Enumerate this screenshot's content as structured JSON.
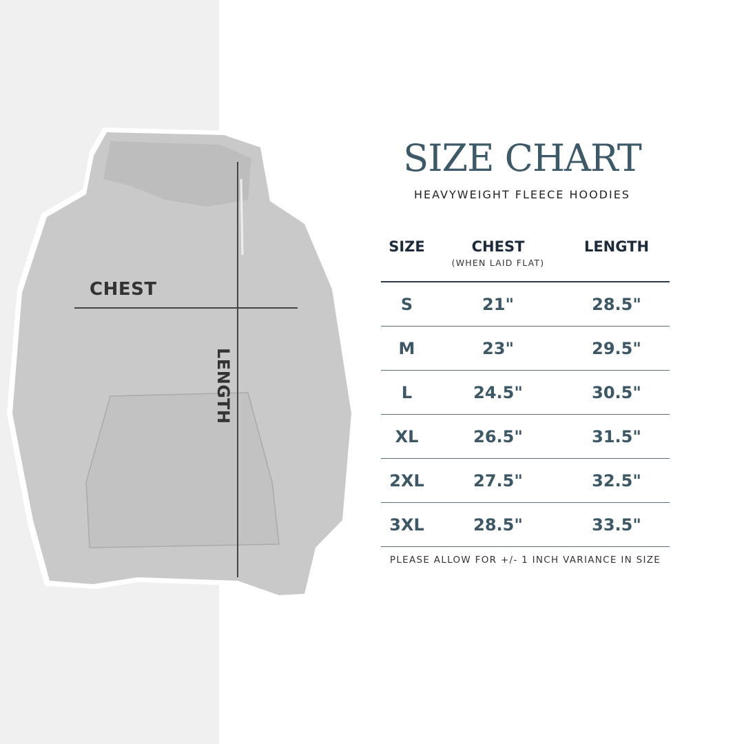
{
  "image_labels": {
    "chest": "CHEST",
    "length": "LENGTH"
  },
  "title": "SIZE CHART",
  "subtitle": "HEAVYWEIGHT FLEECE HOODIES",
  "table": {
    "headers": [
      {
        "label": "SIZE"
      },
      {
        "label": "CHEST",
        "sub": "(WHEN LAID FLAT)"
      },
      {
        "label": "LENGTH"
      }
    ],
    "rows": [
      [
        "S",
        "21\"",
        "28.5\""
      ],
      [
        "M",
        "23\"",
        "29.5\""
      ],
      [
        "L",
        "24.5\"",
        "30.5\""
      ],
      [
        "XL",
        "26.5\"",
        "31.5\""
      ],
      [
        "2XL",
        "27.5\"",
        "32.5\""
      ],
      [
        "3XL",
        "28.5\"",
        "33.5\""
      ]
    ]
  },
  "note": "PLEASE ALLOW FOR +/- 1 INCH VARIANCE IN SIZE",
  "colors": {
    "title": "#3d5866",
    "header": "#1c2a3a",
    "value": "#3e5765",
    "hoodie": "#c9c9c9",
    "left_background": "#f0f0f0"
  }
}
